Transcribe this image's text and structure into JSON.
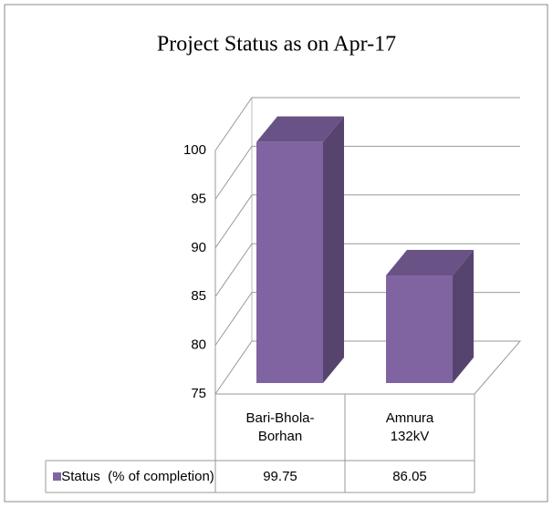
{
  "chart_data": {
    "type": "bar3d",
    "title": "Project Status as on Apr-17",
    "categories": [
      "Bari-Bhola-Borhan",
      "Amnura 132kV"
    ],
    "series": [
      {
        "name": "Status  (% of completion)",
        "color": "#8064a2",
        "values": [
          99.75,
          86.05
        ]
      }
    ],
    "ylim": [
      75,
      100
    ],
    "yticks": [
      75,
      80,
      85,
      90,
      95,
      100
    ],
    "grid": true,
    "data_table": true
  }
}
